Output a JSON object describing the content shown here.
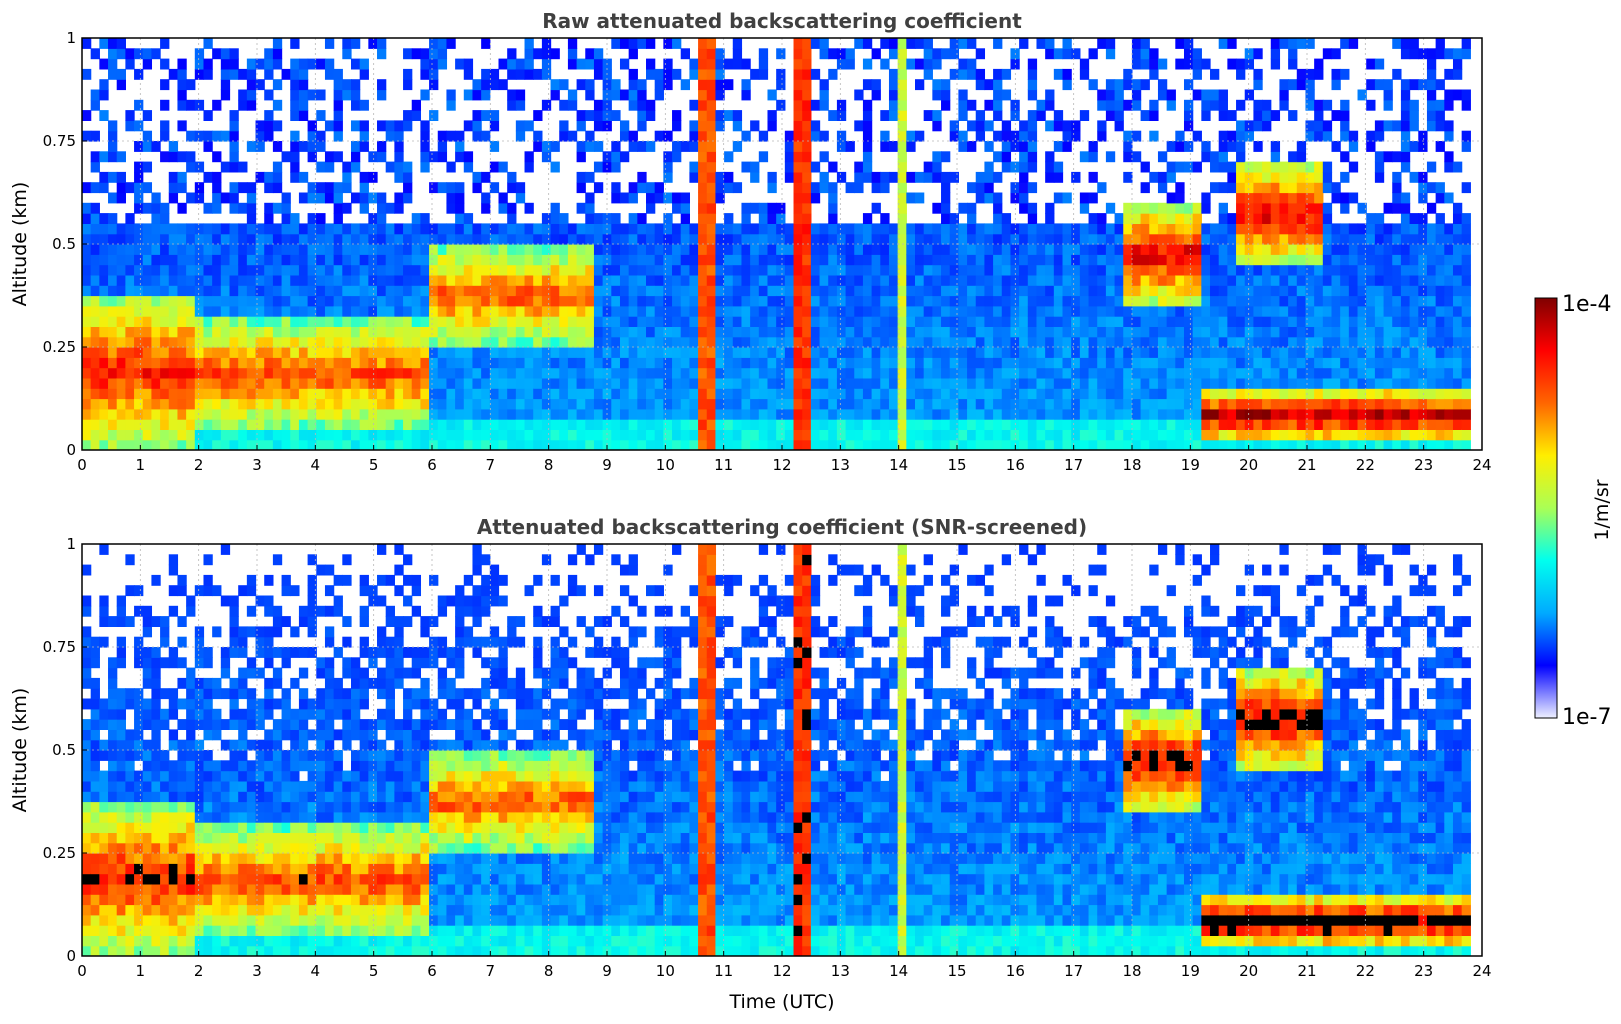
{
  "figure": {
    "shared_xlabel": "Time (UTC)"
  },
  "colorbar": {
    "label": "1/m/sr",
    "min_label": "1e-7",
    "max_label": "1e-4",
    "vmin": 1e-07,
    "vmax": 0.0001,
    "scale": "log",
    "colormap": "jet",
    "colors": [
      "#eef0ff",
      "#0000ff",
      "#00aaff",
      "#00ffee",
      "#aaff55",
      "#ffee00",
      "#ff6600",
      "#ff0000",
      "#800000"
    ]
  },
  "chart_data": [
    {
      "type": "heatmap",
      "title": "Raw attenuated backscattering coefficient",
      "xlabel": "",
      "ylabel": "Altitude (km)",
      "xlim": [
        0,
        24
      ],
      "ylim": [
        0,
        1
      ],
      "xticks": [
        "0",
        "1",
        "2",
        "3",
        "4",
        "5",
        "6",
        "7",
        "8",
        "9",
        "10",
        "11",
        "12",
        "13",
        "14",
        "15",
        "16",
        "17",
        "18",
        "19",
        "20",
        "21",
        "22",
        "23",
        "24"
      ],
      "yticks": [
        "0",
        "0.25",
        "0.5",
        "0.75",
        "1"
      ],
      "grid": true,
      "x_data_end": 23.8,
      "layers": [
        {
          "name": "surface-layer",
          "from": 0.0,
          "to": 2.0,
          "alt_low": 0.0,
          "alt_high": 0.38,
          "level": 0.85
        },
        {
          "name": "boundary-layer",
          "from": 2.0,
          "to": 6.0,
          "alt_low": 0.05,
          "alt_high": 0.32,
          "level": 0.8
        },
        {
          "name": "rising-layer",
          "from": 6.0,
          "to": 8.8,
          "alt_low": 0.25,
          "alt_high": 0.5,
          "level": 0.78
        },
        {
          "name": "cloud-layer-evening",
          "from": 17.8,
          "to": 19.2,
          "alt_low": 0.35,
          "alt_high": 0.6,
          "level": 0.9
        },
        {
          "name": "cloud-layer-night",
          "from": 19.8,
          "to": 21.3,
          "alt_low": 0.45,
          "alt_high": 0.7,
          "level": 0.9
        },
        {
          "name": "nocturnal-layer",
          "from": 19.2,
          "to": 23.8,
          "alt_low": 0.02,
          "alt_high": 0.15,
          "level": 0.95
        }
      ],
      "columns": [
        {
          "name": "rain-band-1",
          "from": 10.5,
          "to": 10.9,
          "level": 0.78
        },
        {
          "name": "rain-band-2",
          "from": 12.2,
          "to": 12.45,
          "level": 0.82
        },
        {
          "name": "rain-band-3",
          "from": 14.0,
          "to": 14.2,
          "level": 0.55
        }
      ]
    },
    {
      "type": "heatmap",
      "title": "Attenuated backscattering coefficient (SNR-screened)",
      "xlabel": "Time (UTC)",
      "ylabel": "Altitude (km)",
      "xlim": [
        0,
        24
      ],
      "ylim": [
        0,
        1
      ],
      "xticks": [
        "0",
        "1",
        "2",
        "3",
        "4",
        "5",
        "6",
        "7",
        "8",
        "9",
        "10",
        "11",
        "12",
        "13",
        "14",
        "15",
        "16",
        "17",
        "18",
        "19",
        "20",
        "21",
        "22",
        "23",
        "24"
      ],
      "yticks": [
        "0",
        "0.25",
        "0.5",
        "0.75",
        "1"
      ],
      "grid": true,
      "x_data_end": 23.8,
      "screened": true,
      "layers": [
        {
          "name": "surface-layer",
          "from": 0.0,
          "to": 2.0,
          "alt_low": 0.0,
          "alt_high": 0.38,
          "level": 0.85
        },
        {
          "name": "boundary-layer",
          "from": 2.0,
          "to": 6.0,
          "alt_low": 0.05,
          "alt_high": 0.32,
          "level": 0.8
        },
        {
          "name": "rising-layer",
          "from": 6.0,
          "to": 8.8,
          "alt_low": 0.25,
          "alt_high": 0.5,
          "level": 0.78
        },
        {
          "name": "cloud-layer-evening",
          "from": 17.8,
          "to": 19.2,
          "alt_low": 0.35,
          "alt_high": 0.6,
          "level": 0.9
        },
        {
          "name": "cloud-layer-night",
          "from": 19.8,
          "to": 21.3,
          "alt_low": 0.45,
          "alt_high": 0.7,
          "level": 0.9
        },
        {
          "name": "nocturnal-layer",
          "from": 19.2,
          "to": 23.8,
          "alt_low": 0.02,
          "alt_high": 0.15,
          "level": 0.95
        }
      ],
      "columns": [
        {
          "name": "rain-band-1",
          "from": 10.5,
          "to": 10.9,
          "level": 0.78
        },
        {
          "name": "rain-band-2",
          "from": 12.2,
          "to": 12.45,
          "level": 0.82
        },
        {
          "name": "rain-band-3",
          "from": 14.0,
          "to": 14.2,
          "level": 0.55
        }
      ]
    }
  ]
}
